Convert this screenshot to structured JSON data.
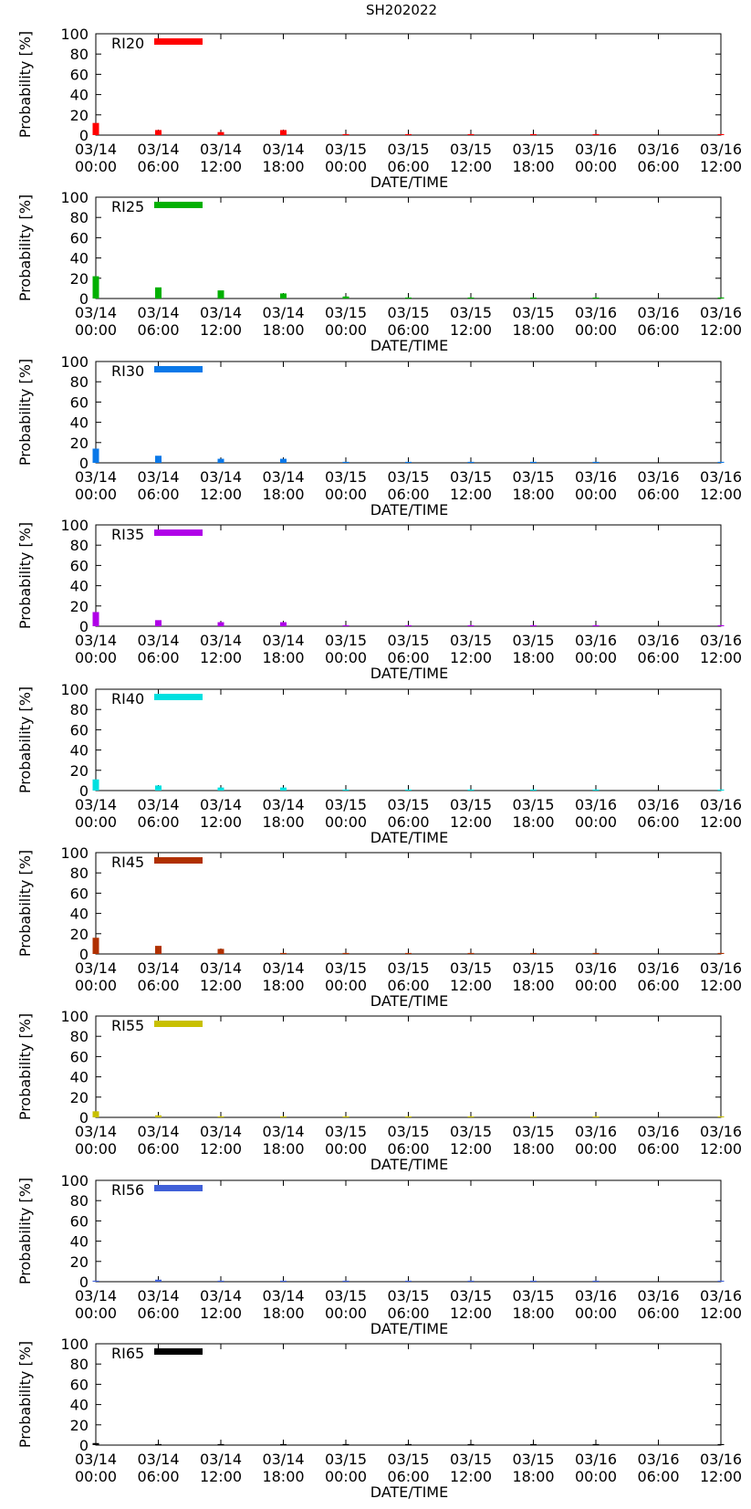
{
  "figure_title": "SH202022",
  "chart_data": [
    {
      "type": "bar",
      "series_name": "RI20",
      "color": "#ff0000",
      "title": "SH202022",
      "xlabel": "DATE/TIME",
      "ylabel": "Probability [%]",
      "ylim": [
        0,
        100
      ],
      "yticks": [
        "0",
        "20",
        "40",
        "60",
        "80",
        "100"
      ],
      "xticks": [
        [
          "03/14",
          "00:00"
        ],
        [
          "03/14",
          "06:00"
        ],
        [
          "03/14",
          "12:00"
        ],
        [
          "03/14",
          "18:00"
        ],
        [
          "03/15",
          "00:00"
        ],
        [
          "03/15",
          "06:00"
        ],
        [
          "03/15",
          "12:00"
        ],
        [
          "03/15",
          "18:00"
        ],
        [
          "03/16",
          "00:00"
        ],
        [
          "03/16",
          "06:00"
        ],
        [
          "03/16",
          "12:00"
        ]
      ],
      "x_hours": [
        0,
        6,
        12,
        18,
        24,
        30,
        36,
        42,
        48,
        60
      ],
      "values": [
        12,
        5,
        3,
        5,
        1,
        1,
        1,
        1,
        1,
        1
      ]
    },
    {
      "type": "bar",
      "series_name": "RI25",
      "color": "#00b000",
      "xlabel": "DATE/TIME",
      "ylabel": "Probability [%]",
      "ylim": [
        0,
        100
      ],
      "yticks": [
        "0",
        "20",
        "40",
        "60",
        "80",
        "100"
      ],
      "xticks": [
        [
          "03/14",
          "00:00"
        ],
        [
          "03/14",
          "06:00"
        ],
        [
          "03/14",
          "12:00"
        ],
        [
          "03/14",
          "18:00"
        ],
        [
          "03/15",
          "00:00"
        ],
        [
          "03/15",
          "06:00"
        ],
        [
          "03/15",
          "12:00"
        ],
        [
          "03/15",
          "18:00"
        ],
        [
          "03/16",
          "00:00"
        ],
        [
          "03/16",
          "06:00"
        ],
        [
          "03/16",
          "12:00"
        ]
      ],
      "x_hours": [
        0,
        6,
        12,
        18,
        24,
        30,
        36,
        42,
        48,
        60
      ],
      "values": [
        22,
        11,
        8,
        5,
        2,
        1,
        1,
        1,
        1,
        1
      ]
    },
    {
      "type": "bar",
      "series_name": "RI30",
      "color": "#0a78e8",
      "xlabel": "DATE/TIME",
      "ylabel": "Probability [%]",
      "ylim": [
        0,
        100
      ],
      "yticks": [
        "0",
        "20",
        "40",
        "60",
        "80",
        "100"
      ],
      "xticks": [
        [
          "03/14",
          "00:00"
        ],
        [
          "03/14",
          "06:00"
        ],
        [
          "03/14",
          "12:00"
        ],
        [
          "03/14",
          "18:00"
        ],
        [
          "03/15",
          "00:00"
        ],
        [
          "03/15",
          "06:00"
        ],
        [
          "03/15",
          "12:00"
        ],
        [
          "03/15",
          "18:00"
        ],
        [
          "03/16",
          "00:00"
        ],
        [
          "03/16",
          "06:00"
        ],
        [
          "03/16",
          "12:00"
        ]
      ],
      "x_hours": [
        0,
        6,
        12,
        18,
        24,
        30,
        36,
        42,
        48,
        60
      ],
      "values": [
        14,
        7,
        4,
        4,
        1,
        1,
        1,
        1,
        1,
        1
      ]
    },
    {
      "type": "bar",
      "series_name": "RI35",
      "color": "#b000e8",
      "xlabel": "DATE/TIME",
      "ylabel": "Probability [%]",
      "ylim": [
        0,
        100
      ],
      "yticks": [
        "0",
        "20",
        "40",
        "60",
        "80",
        "100"
      ],
      "xticks": [
        [
          "03/14",
          "00:00"
        ],
        [
          "03/14",
          "06:00"
        ],
        [
          "03/14",
          "12:00"
        ],
        [
          "03/14",
          "18:00"
        ],
        [
          "03/15",
          "00:00"
        ],
        [
          "03/15",
          "06:00"
        ],
        [
          "03/15",
          "12:00"
        ],
        [
          "03/15",
          "18:00"
        ],
        [
          "03/16",
          "00:00"
        ],
        [
          "03/16",
          "06:00"
        ],
        [
          "03/16",
          "12:00"
        ]
      ],
      "x_hours": [
        0,
        6,
        12,
        18,
        24,
        30,
        36,
        42,
        48,
        60
      ],
      "values": [
        14,
        6,
        4,
        4,
        1,
        1,
        1,
        1,
        1,
        1
      ]
    },
    {
      "type": "bar",
      "series_name": "RI40",
      "color": "#00e0e0",
      "xlabel": "DATE/TIME",
      "ylabel": "Probability [%]",
      "ylim": [
        0,
        100
      ],
      "yticks": [
        "0",
        "20",
        "40",
        "60",
        "80",
        "100"
      ],
      "xticks": [
        [
          "03/14",
          "00:00"
        ],
        [
          "03/14",
          "06:00"
        ],
        [
          "03/14",
          "12:00"
        ],
        [
          "03/14",
          "18:00"
        ],
        [
          "03/15",
          "00:00"
        ],
        [
          "03/15",
          "06:00"
        ],
        [
          "03/15",
          "12:00"
        ],
        [
          "03/15",
          "18:00"
        ],
        [
          "03/16",
          "00:00"
        ],
        [
          "03/16",
          "06:00"
        ],
        [
          "03/16",
          "12:00"
        ]
      ],
      "x_hours": [
        0,
        6,
        12,
        18,
        24,
        30,
        36,
        42,
        48,
        60
      ],
      "values": [
        11,
        5,
        3,
        3,
        1,
        1,
        1,
        1,
        1,
        1
      ]
    },
    {
      "type": "bar",
      "series_name": "RI45",
      "color": "#b03000",
      "xlabel": "DATE/TIME",
      "ylabel": "Probability [%]",
      "ylim": [
        0,
        100
      ],
      "yticks": [
        "0",
        "20",
        "40",
        "60",
        "80",
        "100"
      ],
      "xticks": [
        [
          "03/14",
          "00:00"
        ],
        [
          "03/14",
          "06:00"
        ],
        [
          "03/14",
          "12:00"
        ],
        [
          "03/14",
          "18:00"
        ],
        [
          "03/15",
          "00:00"
        ],
        [
          "03/15",
          "06:00"
        ],
        [
          "03/15",
          "12:00"
        ],
        [
          "03/15",
          "18:00"
        ],
        [
          "03/16",
          "00:00"
        ],
        [
          "03/16",
          "06:00"
        ],
        [
          "03/16",
          "12:00"
        ]
      ],
      "x_hours": [
        0,
        6,
        12,
        18,
        24,
        30,
        36,
        42,
        48,
        60
      ],
      "values": [
        16,
        8,
        5,
        1,
        1,
        1,
        1,
        1,
        1,
        1
      ]
    },
    {
      "type": "bar",
      "series_name": "RI55",
      "color": "#c8c000",
      "xlabel": "DATE/TIME",
      "ylabel": "Probability [%]",
      "ylim": [
        0,
        100
      ],
      "yticks": [
        "0",
        "20",
        "40",
        "60",
        "80",
        "100"
      ],
      "xticks": [
        [
          "03/14",
          "00:00"
        ],
        [
          "03/14",
          "06:00"
        ],
        [
          "03/14",
          "12:00"
        ],
        [
          "03/14",
          "18:00"
        ],
        [
          "03/15",
          "00:00"
        ],
        [
          "03/15",
          "06:00"
        ],
        [
          "03/15",
          "12:00"
        ],
        [
          "03/15",
          "18:00"
        ],
        [
          "03/16",
          "00:00"
        ],
        [
          "03/16",
          "06:00"
        ],
        [
          "03/16",
          "12:00"
        ]
      ],
      "x_hours": [
        0,
        6,
        12,
        18,
        24,
        30,
        36,
        42,
        48,
        60
      ],
      "values": [
        6,
        2,
        1,
        1,
        1,
        1,
        1,
        1,
        1,
        1
      ]
    },
    {
      "type": "bar",
      "series_name": "RI56",
      "color": "#4060d8",
      "xlabel": "DATE/TIME",
      "ylabel": "Probability [%]",
      "ylim": [
        0,
        100
      ],
      "yticks": [
        "0",
        "20",
        "40",
        "60",
        "80",
        "100"
      ],
      "xticks": [
        [
          "03/14",
          "00:00"
        ],
        [
          "03/14",
          "06:00"
        ],
        [
          "03/14",
          "12:00"
        ],
        [
          "03/14",
          "18:00"
        ],
        [
          "03/15",
          "00:00"
        ],
        [
          "03/15",
          "06:00"
        ],
        [
          "03/15",
          "12:00"
        ],
        [
          "03/15",
          "18:00"
        ],
        [
          "03/16",
          "00:00"
        ],
        [
          "03/16",
          "06:00"
        ],
        [
          "03/16",
          "12:00"
        ]
      ],
      "x_hours": [
        0,
        6,
        12,
        18,
        24,
        30,
        36,
        42,
        48,
        60
      ],
      "values": [
        1,
        2,
        1,
        1,
        1,
        1,
        1,
        1,
        1,
        1
      ]
    },
    {
      "type": "bar",
      "series_name": "RI65",
      "color": "#000000",
      "xlabel": "DATE/TIME",
      "ylabel": "Probability [%]",
      "ylim": [
        0,
        100
      ],
      "yticks": [
        "0",
        "20",
        "40",
        "60",
        "80",
        "100"
      ],
      "xticks": [
        [
          "03/14",
          "00:00"
        ],
        [
          "03/14",
          "06:00"
        ],
        [
          "03/14",
          "12:00"
        ],
        [
          "03/14",
          "18:00"
        ],
        [
          "03/15",
          "00:00"
        ],
        [
          "03/15",
          "06:00"
        ],
        [
          "03/15",
          "12:00"
        ],
        [
          "03/15",
          "18:00"
        ],
        [
          "03/16",
          "00:00"
        ],
        [
          "03/16",
          "06:00"
        ],
        [
          "03/16",
          "12:00"
        ]
      ],
      "x_hours": [
        0,
        6,
        12,
        18,
        24,
        30,
        36,
        42,
        48,
        60
      ],
      "values": [
        2,
        1,
        1,
        1,
        1,
        1,
        1,
        1,
        1,
        1
      ]
    }
  ]
}
